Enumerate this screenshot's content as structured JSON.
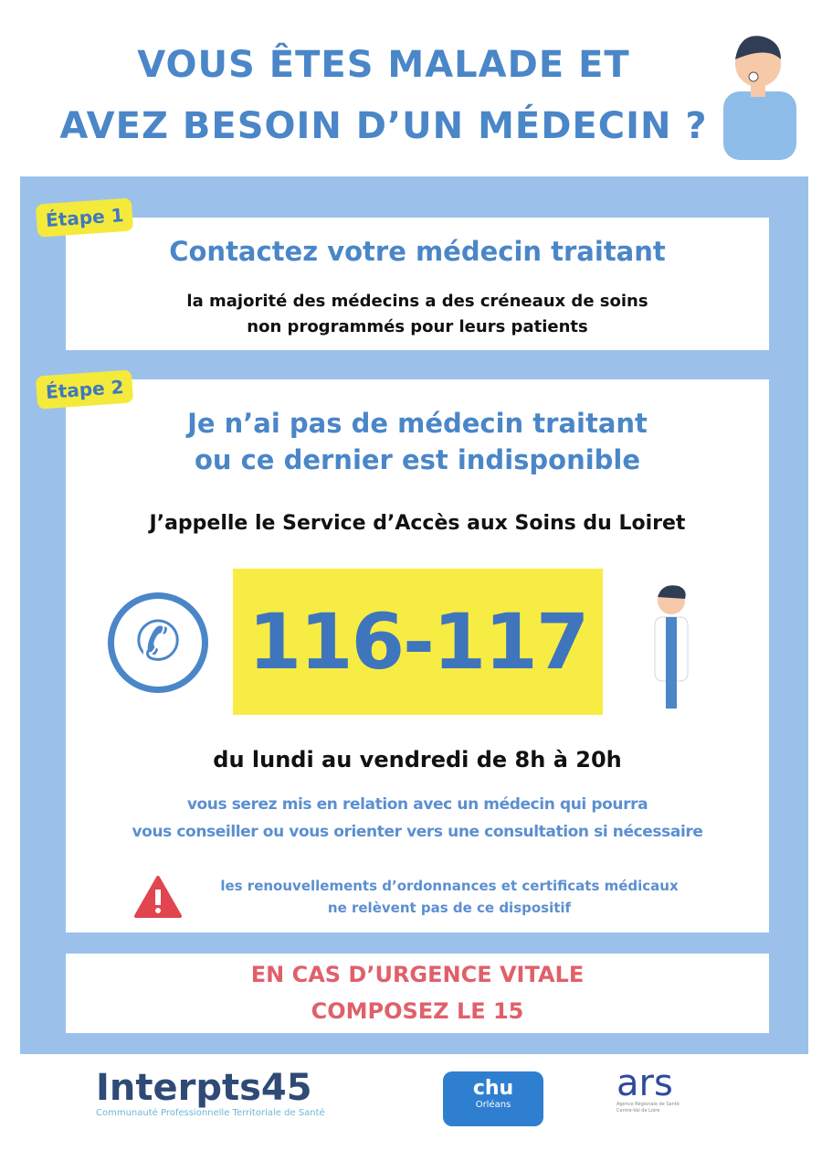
{
  "title": {
    "line1": "VOUS ÊTES MALADE ET",
    "line2": "AVEZ BESOIN D’UN MÉDECIN ?"
  },
  "step1": {
    "label": "Étape 1",
    "heading": "Contactez votre médecin traitant",
    "text1": "la majorité des médecins a des créneaux de soins",
    "text2": "non programmés pour leurs patients"
  },
  "step2": {
    "label": "Étape 2",
    "heading1": "Je n’ai pas de médecin traitant",
    "heading2": "ou ce dernier est indisponible",
    "call": "J’appelle le Service d’Accès aux Soins du Loiret",
    "number": "116-117",
    "hours": "du lundi au vendredi de 8h à 20h",
    "info1": "vous serez mis en relation avec un médecin qui pourra",
    "info2": "vous conseiller ou vous orienter vers une consultation si nécessaire",
    "warn1": "les renouvellements d’ordonnances et certificats médicaux",
    "warn2": "ne relèvent pas de ce dispositif"
  },
  "emergency": {
    "line1": "EN CAS D’URGENCE VITALE",
    "line2": "COMPOSEZ LE 15"
  },
  "logos": {
    "interpts": "Interpts45",
    "interpts_sub": "Communauté Professionnelle Territoriale de Santé",
    "chu": "chu",
    "chu_sub": "Orléans",
    "ars": "ars",
    "ars_sub": "Agence Régionale de Santé Centre-Val de Loire"
  },
  "colors": {
    "blue": "#4a86c8",
    "frame": "#9bc1ea",
    "yellow": "#f7ec44",
    "red": "#e0606a"
  }
}
